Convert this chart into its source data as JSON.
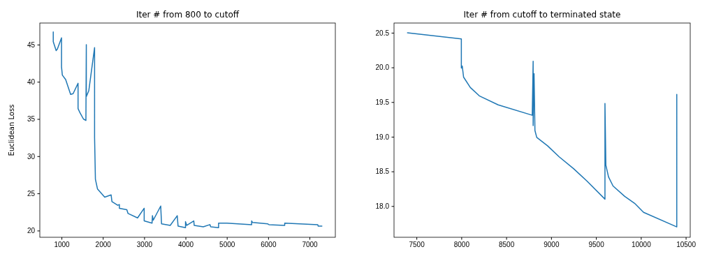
{
  "chart_data": [
    {
      "type": "line",
      "title": "Iter # from 800 to cutoff",
      "ylabel": "Euclidean Loss",
      "xlim": [
        475,
        7625
      ],
      "xticks": [
        1000,
        2000,
        3000,
        4000,
        5000,
        6000,
        7000
      ],
      "ylim": [
        19.1,
        47.9
      ],
      "yticks": [
        20,
        25,
        30,
        35,
        40,
        45
      ],
      "series": [
        {
          "color": "#1f77b4",
          "x": [
            800,
            800,
            870,
            900,
            1000,
            1000,
            1020,
            1100,
            1220,
            1280,
            1400,
            1400,
            1450,
            1530,
            1590,
            1600,
            1600,
            1660,
            1800,
            1800,
            1820,
            1870,
            2045,
            2200,
            2220,
            2360,
            2400,
            2400,
            2580,
            2610,
            2840,
            3000,
            3000,
            3190,
            3200,
            3220,
            3400,
            3420,
            3630,
            3800,
            3820,
            4000,
            4000,
            4030,
            4200,
            4210,
            4430,
            4590,
            4610,
            4800,
            4800,
            5000,
            5600,
            5600,
            5620,
            5990,
            6020,
            6400,
            6400,
            7200,
            7210,
            7300
          ],
          "values": [
            46.7,
            45.4,
            44.2,
            44.4,
            45.9,
            42.0,
            40.9,
            40.3,
            38.3,
            38.4,
            39.8,
            36.4,
            35.8,
            35.0,
            34.8,
            45.0,
            38.0,
            38.8,
            44.6,
            32.5,
            26.9,
            25.6,
            24.5,
            24.8,
            23.9,
            23.4,
            23.5,
            23.0,
            22.8,
            22.3,
            21.7,
            23.0,
            21.3,
            21.0,
            22.0,
            21.4,
            23.3,
            20.9,
            20.7,
            22.0,
            20.6,
            20.4,
            21.2,
            20.7,
            21.3,
            20.7,
            20.5,
            20.8,
            20.5,
            20.4,
            21.0,
            21.0,
            20.8,
            21.3,
            21.1,
            20.9,
            20.8,
            20.7,
            21.0,
            20.8,
            20.6,
            20.6
          ]
        }
      ]
    },
    {
      "type": "line",
      "title": "Iter # from cutoff to terminated state",
      "xlim": [
        7250,
        10550
      ],
      "xticks": [
        7500,
        8000,
        8500,
        9000,
        9500,
        10000,
        10500
      ],
      "ylim": [
        17.55,
        20.64
      ],
      "yticks": [
        {
          "value": 18,
          "label": "18.0"
        },
        18.5,
        {
          "value": 19,
          "label": "19.0"
        },
        19.5,
        {
          "value": 20,
          "label": "20.0"
        },
        20.5
      ],
      "series": [
        {
          "color": "#1f77b4",
          "x": [
            7400,
            8000,
            8000,
            8010,
            8025,
            8100,
            8200,
            8410,
            8790,
            8800,
            8800,
            8810,
            8820,
            8840,
            8960,
            9090,
            9250,
            9400,
            9600,
            9600,
            9610,
            9640,
            9690,
            9820,
            9930,
            10030,
            10400,
            10400
          ],
          "values": [
            20.5,
            20.41,
            19.99,
            20.02,
            19.86,
            19.71,
            19.59,
            19.46,
            19.31,
            20.09,
            19.16,
            19.91,
            19.09,
            18.99,
            18.87,
            18.71,
            18.54,
            18.36,
            18.1,
            19.48,
            18.59,
            18.42,
            18.29,
            18.14,
            18.04,
            17.91,
            17.7,
            19.61
          ]
        }
      ]
    }
  ]
}
